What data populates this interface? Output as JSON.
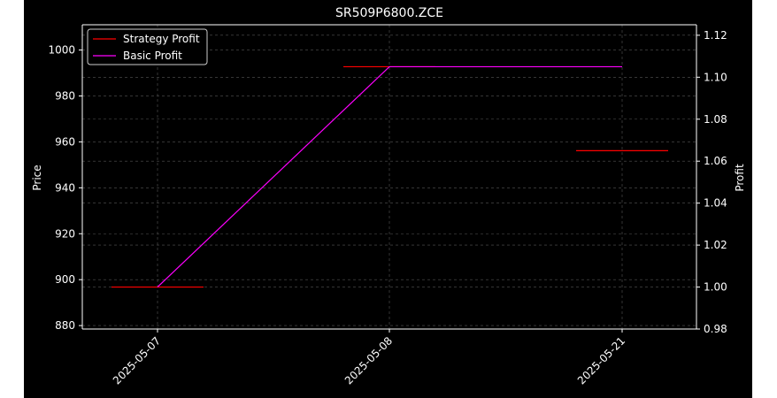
{
  "chart_data": {
    "type": "line",
    "title": "SR509P6800.ZCE",
    "ylabel_left": "Price",
    "ylabel_right": "Profit",
    "categories": [
      "2025-05-07",
      "2025-05-08",
      "2025-05-21"
    ],
    "ylim_left": [
      878.5,
      1011
    ],
    "ylim_right": [
      0.98,
      1.125
    ],
    "yticks_left": [
      880,
      900,
      920,
      940,
      960,
      980,
      1000
    ],
    "yticks_right": [
      0.98,
      1.0,
      1.02,
      1.04,
      1.06,
      1.08,
      1.1,
      1.12
    ],
    "yticks_right_labels": [
      "0.98",
      "1.00",
      "1.02",
      "1.04",
      "1.06",
      "1.08",
      "1.10",
      "1.12"
    ],
    "grid": true,
    "legend_position": "top-left",
    "series": [
      {
        "name": "Strategy Profit",
        "color": "#ff0000",
        "axis": "right",
        "style": "step-segments",
        "values": [
          1.0,
          1.105,
          1.065
        ]
      },
      {
        "name": "Basic Profit",
        "color": "#ff00ff",
        "axis": "right",
        "style": "line",
        "values": [
          1.0,
          1.105,
          1.105
        ]
      }
    ]
  }
}
